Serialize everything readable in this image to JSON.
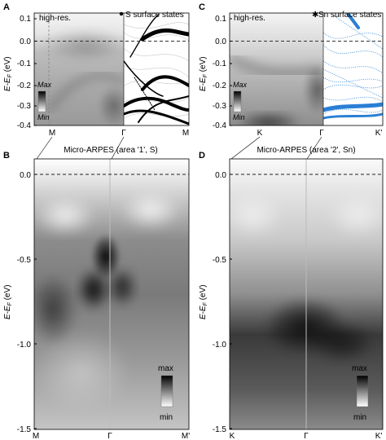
{
  "panels": {
    "A": {
      "label": "A",
      "title_left": "high-res.",
      "legend": "S surface states",
      "ylabel_main": "E-E",
      "ylabel_sub": "F",
      "ylabel_unit": " (eV)",
      "yticks": [
        "0.1",
        "0.0",
        "-0.1",
        "-0.2",
        "-0.3",
        "-0.4"
      ],
      "xticks": [
        "M",
        "Γ",
        "M"
      ],
      "cbar_max": "Max",
      "cbar_min": "Min"
    },
    "B": {
      "label": "B",
      "title": "Micro-ARPES (area '1', S)",
      "ylabel_main": "E-E",
      "ylabel_sub": "F",
      "ylabel_unit": " (eV)",
      "yticks": [
        "0.0",
        "-0.5",
        "-1.0",
        "-1.5"
      ],
      "xticks": [
        "M",
        "Γ",
        "M'"
      ],
      "cbar_max": "max",
      "cbar_min": "min"
    },
    "C": {
      "label": "C",
      "title_left": "high-res.",
      "legend": "Sn surface states",
      "ylabel_main": "E-E",
      "ylabel_sub": "F",
      "ylabel_unit": " (eV)",
      "yticks": [
        "0.1",
        "0.0",
        "-0.1",
        "-0.2",
        "-0.3",
        "-0.4"
      ],
      "xticks": [
        "K",
        "Γ",
        "K'"
      ],
      "cbar_max": "Max",
      "cbar_min": "Min"
    },
    "D": {
      "label": "D",
      "title": "Micro-ARPES (area '2', Sn)",
      "ylabel_main": "E-E",
      "ylabel_sub": "F",
      "ylabel_unit": " (eV)",
      "yticks": [
        "0.0",
        "-0.5",
        "-1.0",
        "-1.5"
      ],
      "xticks": [
        "K",
        "Γ",
        "K'"
      ],
      "cbar_max": "max",
      "cbar_min": "min"
    }
  },
  "colors": {
    "s_states": "#000000",
    "sn_states": "#2a7fd4"
  }
}
